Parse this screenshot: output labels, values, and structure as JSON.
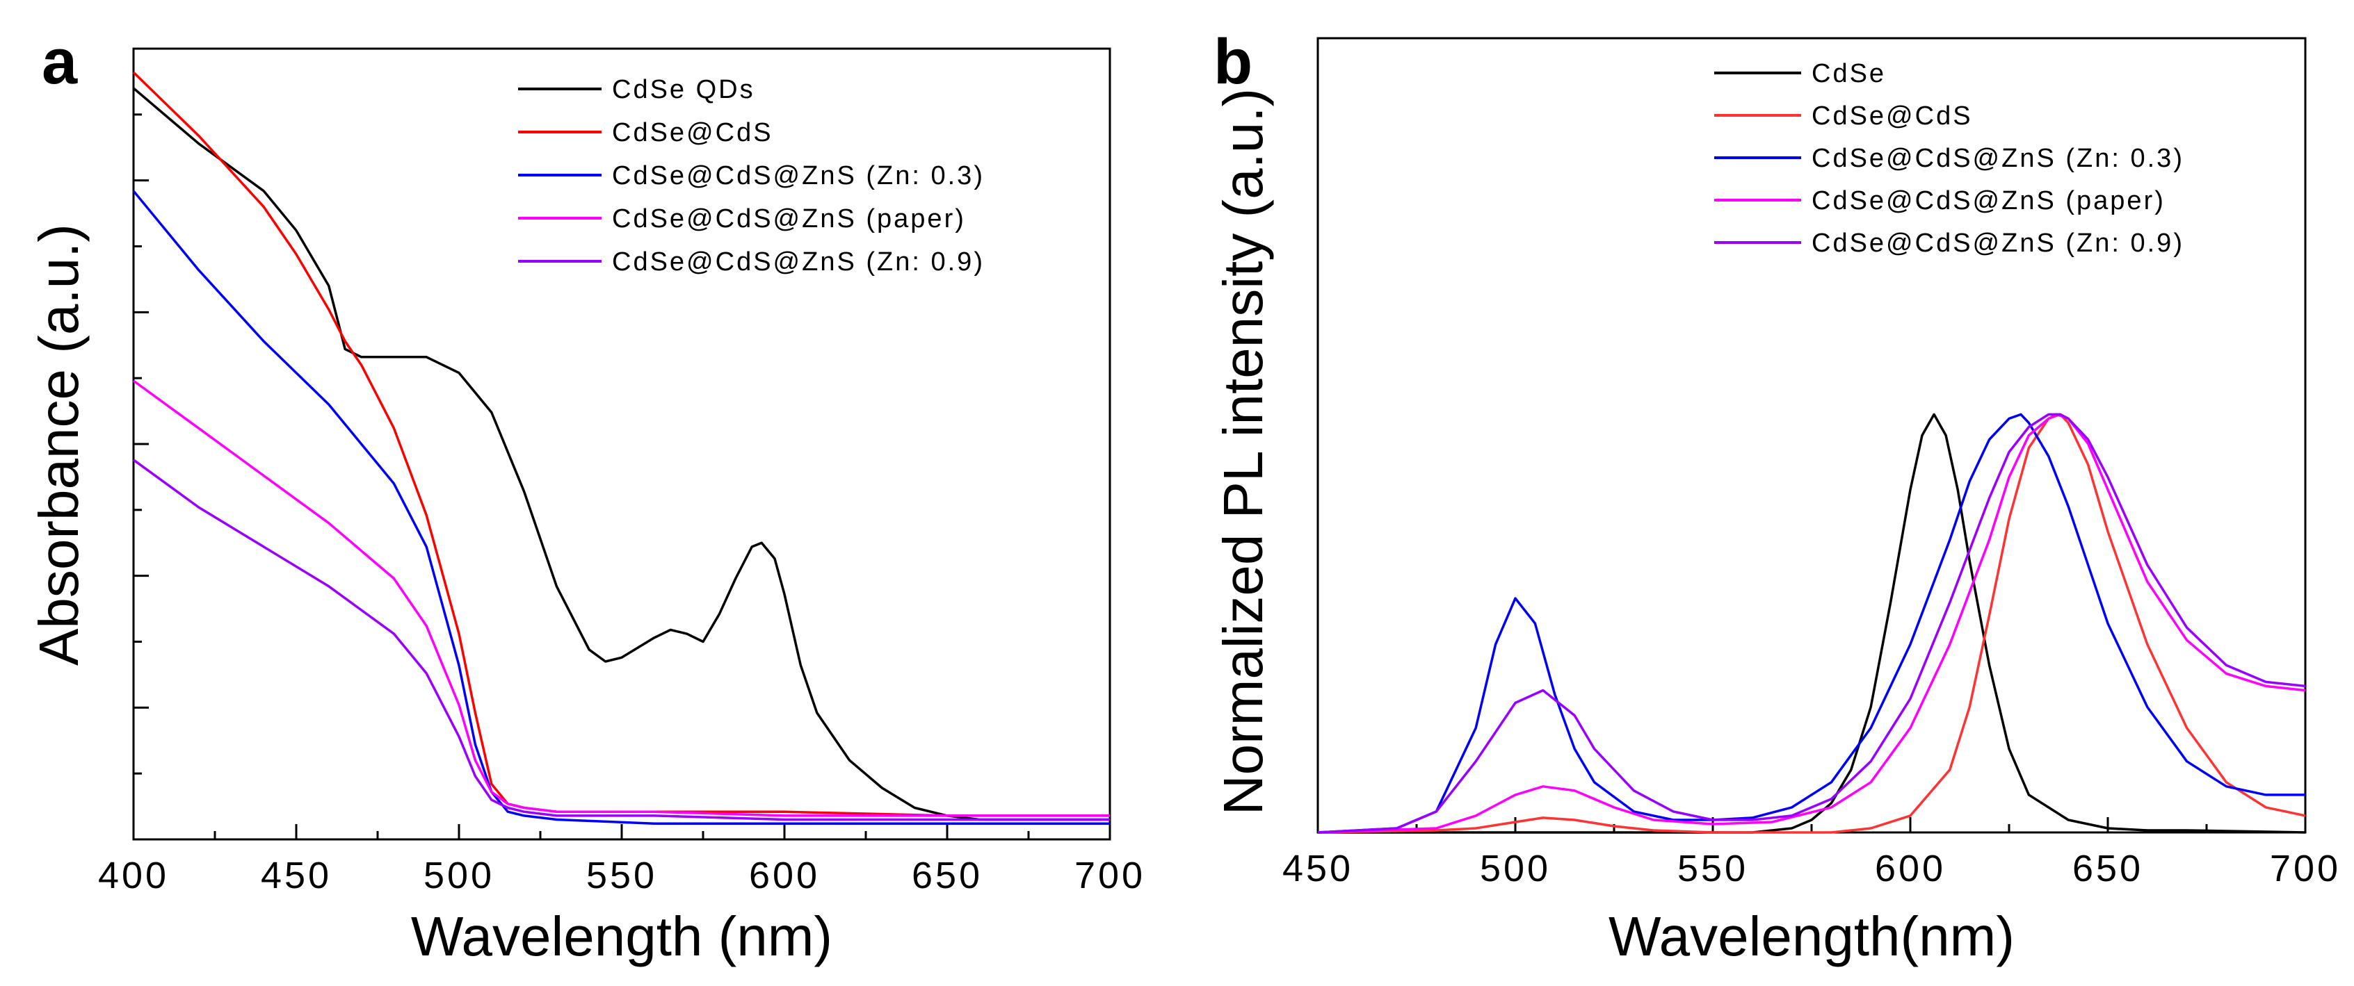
{
  "chart_data": [
    {
      "type": "line",
      "panel": "a",
      "title": "",
      "xlabel": "Wavelength (nm)",
      "ylabel": "Absorbance (a.u.)",
      "xlim": [
        400,
        700
      ],
      "ylim": [
        0,
        1
      ],
      "xticks": [
        400,
        450,
        500,
        550,
        600,
        650,
        700
      ],
      "ytick_labels": false,
      "grid": false,
      "legend_position": "top-right",
      "series": [
        {
          "name": "CdSe QDs",
          "color": "#000000",
          "x": [
            400,
            420,
            440,
            450,
            460,
            465,
            470,
            480,
            490,
            500,
            510,
            520,
            530,
            540,
            545,
            550,
            560,
            565,
            570,
            575,
            580,
            585,
            590,
            593,
            597,
            600,
            605,
            610,
            620,
            630,
            640,
            650,
            660,
            680,
            700
          ],
          "y": [
            0.95,
            0.88,
            0.82,
            0.77,
            0.7,
            0.62,
            0.61,
            0.61,
            0.61,
            0.59,
            0.54,
            0.44,
            0.32,
            0.24,
            0.225,
            0.23,
            0.255,
            0.265,
            0.26,
            0.25,
            0.285,
            0.33,
            0.37,
            0.375,
            0.355,
            0.31,
            0.22,
            0.16,
            0.1,
            0.065,
            0.04,
            0.03,
            0.025,
            0.025,
            0.025
          ]
        },
        {
          "name": "CdSe@CdS",
          "color": "#ff0000",
          "x": [
            400,
            420,
            440,
            450,
            460,
            465,
            470,
            480,
            490,
            500,
            505,
            510,
            515,
            520,
            530,
            560,
            600,
            650,
            700
          ],
          "y": [
            0.97,
            0.89,
            0.8,
            0.74,
            0.67,
            0.63,
            0.6,
            0.52,
            0.41,
            0.26,
            0.16,
            0.07,
            0.045,
            0.04,
            0.035,
            0.035,
            0.035,
            0.03,
            0.03
          ]
        },
        {
          "name": "CdSe@CdS@ZnS (Zn: 0.3)",
          "color": "#0000ff",
          "x": [
            400,
            420,
            440,
            460,
            480,
            490,
            500,
            505,
            510,
            515,
            520,
            530,
            560,
            600,
            650,
            700
          ],
          "y": [
            0.82,
            0.72,
            0.63,
            0.55,
            0.45,
            0.37,
            0.22,
            0.12,
            0.06,
            0.035,
            0.03,
            0.025,
            0.02,
            0.02,
            0.02,
            0.02
          ]
        },
        {
          "name": "CdSe@CdS@ZnS (paper)",
          "color": "#ff00ff",
          "x": [
            400,
            420,
            440,
            460,
            480,
            490,
            500,
            505,
            510,
            515,
            520,
            530,
            560,
            600,
            650,
            700
          ],
          "y": [
            0.58,
            0.52,
            0.46,
            0.4,
            0.33,
            0.27,
            0.17,
            0.1,
            0.06,
            0.045,
            0.04,
            0.035,
            0.035,
            0.03,
            0.03,
            0.03
          ]
        },
        {
          "name": "CdSe@CdS@ZnS (Zn: 0.9)",
          "color": "#9900ff",
          "x": [
            400,
            420,
            440,
            460,
            480,
            490,
            500,
            505,
            510,
            515,
            520,
            530,
            560,
            600,
            650,
            700
          ],
          "y": [
            0.48,
            0.42,
            0.37,
            0.32,
            0.26,
            0.21,
            0.13,
            0.08,
            0.05,
            0.04,
            0.035,
            0.03,
            0.03,
            0.025,
            0.025,
            0.025
          ]
        }
      ]
    },
    {
      "type": "line",
      "panel": "b",
      "title": "",
      "xlabel": "Wavelength(nm)",
      "ylabel": "Normalized PL intensity (a.u.)",
      "xlim": [
        450,
        700
      ],
      "ylim": [
        0,
        1.9
      ],
      "xticks": [
        450,
        500,
        550,
        600,
        650,
        700
      ],
      "ytick_labels": false,
      "grid": false,
      "legend_position": "top-right",
      "series": [
        {
          "name": "CdSe",
          "color": "#000000",
          "x": [
            450,
            560,
            570,
            575,
            580,
            585,
            590,
            595,
            600,
            603,
            606,
            609,
            612,
            615,
            620,
            625,
            630,
            640,
            650,
            660,
            670,
            700
          ],
          "y": [
            0.0,
            0.0,
            0.01,
            0.03,
            0.07,
            0.15,
            0.3,
            0.55,
            0.82,
            0.95,
            1.0,
            0.95,
            0.82,
            0.65,
            0.4,
            0.2,
            0.09,
            0.03,
            0.01,
            0.005,
            0.005,
            0.0
          ]
        },
        {
          "name": "CdSe@CdS",
          "color": "#ff3333",
          "x": [
            450,
            480,
            490,
            500,
            507,
            515,
            525,
            535,
            550,
            580,
            590,
            600,
            610,
            615,
            620,
            625,
            630,
            635,
            638,
            640,
            645,
            650,
            660,
            670,
            680,
            690,
            700
          ],
          "y": [
            0.0,
            0.005,
            0.01,
            0.025,
            0.035,
            0.03,
            0.015,
            0.005,
            0.0,
            0.0,
            0.01,
            0.04,
            0.15,
            0.3,
            0.52,
            0.75,
            0.92,
            0.99,
            1.0,
            0.98,
            0.88,
            0.72,
            0.45,
            0.25,
            0.12,
            0.06,
            0.04
          ]
        },
        {
          "name": "CdSe@CdS@ZnS (Zn: 0.3)",
          "color": "#0000ff",
          "x": [
            450,
            470,
            480,
            490,
            495,
            500,
            505,
            510,
            515,
            520,
            530,
            540,
            550,
            560,
            570,
            580,
            590,
            600,
            610,
            615,
            620,
            625,
            628,
            630,
            635,
            640,
            645,
            650,
            660,
            670,
            680,
            690,
            700
          ],
          "y": [
            0.0,
            0.01,
            0.05,
            0.25,
            0.45,
            0.56,
            0.5,
            0.33,
            0.2,
            0.12,
            0.05,
            0.03,
            0.03,
            0.035,
            0.06,
            0.12,
            0.25,
            0.45,
            0.7,
            0.84,
            0.94,
            0.99,
            1.0,
            0.98,
            0.9,
            0.78,
            0.64,
            0.5,
            0.3,
            0.17,
            0.11,
            0.09,
            0.09
          ]
        },
        {
          "name": "CdSe@CdS@ZnS (paper)",
          "color": "#ff00ff",
          "x": [
            450,
            480,
            490,
            500,
            507,
            515,
            525,
            535,
            550,
            565,
            580,
            590,
            600,
            610,
            620,
            625,
            630,
            635,
            637,
            640,
            645,
            650,
            660,
            670,
            680,
            690,
            700
          ],
          "y": [
            0.0,
            0.01,
            0.04,
            0.09,
            0.11,
            0.1,
            0.06,
            0.03,
            0.02,
            0.025,
            0.06,
            0.12,
            0.25,
            0.45,
            0.7,
            0.85,
            0.95,
            0.99,
            1.0,
            0.99,
            0.93,
            0.82,
            0.6,
            0.46,
            0.38,
            0.35,
            0.34
          ]
        },
        {
          "name": "CdSe@CdS@ZnS (Zn: 0.9)",
          "color": "#9900ff",
          "x": [
            450,
            470,
            480,
            490,
            500,
            507,
            515,
            520,
            530,
            540,
            550,
            560,
            570,
            580,
            590,
            600,
            610,
            620,
            625,
            630,
            635,
            638,
            640,
            645,
            650,
            660,
            670,
            680,
            690,
            700
          ],
          "y": [
            0.0,
            0.01,
            0.05,
            0.17,
            0.31,
            0.34,
            0.28,
            0.2,
            0.1,
            0.05,
            0.03,
            0.03,
            0.04,
            0.08,
            0.17,
            0.32,
            0.55,
            0.8,
            0.91,
            0.97,
            1.0,
            1.0,
            0.99,
            0.94,
            0.85,
            0.64,
            0.49,
            0.4,
            0.36,
            0.35
          ]
        }
      ]
    }
  ]
}
